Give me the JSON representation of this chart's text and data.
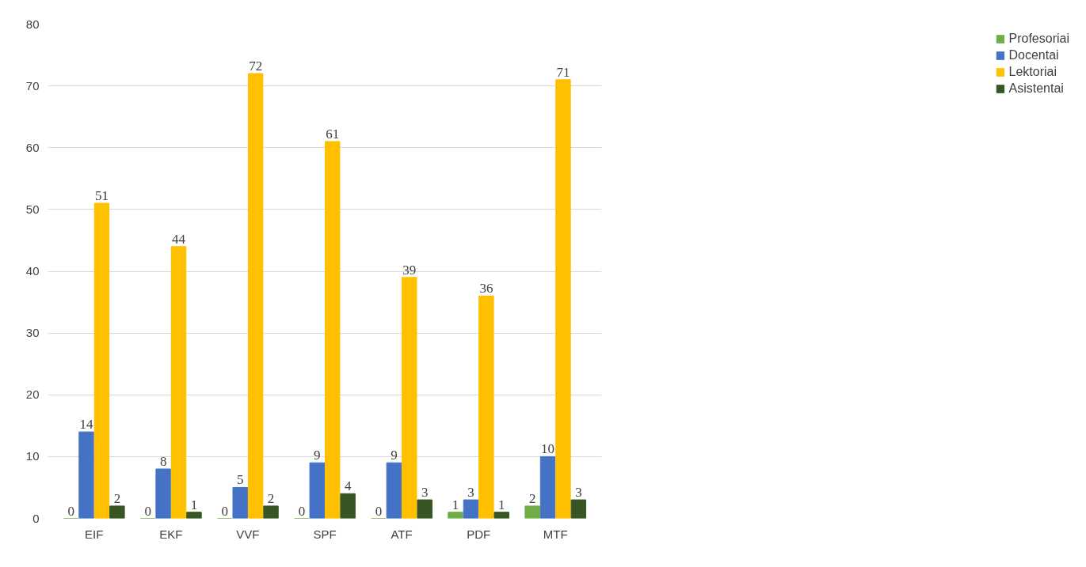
{
  "chart_data": {
    "type": "bar",
    "categories": [
      "EIF",
      "EKF",
      "VVF",
      "SPF",
      "ATF",
      "PDF",
      "MTF"
    ],
    "series": [
      {
        "name": "Profesoriai",
        "color": "#70ad47",
        "values": [
          0,
          0,
          0,
          0,
          0,
          1,
          2
        ]
      },
      {
        "name": "Docentai",
        "color": "#4472c4",
        "values": [
          14,
          8,
          5,
          9,
          9,
          3,
          10
        ]
      },
      {
        "name": "Lektoriai",
        "color": "#ffc000",
        "values": [
          51,
          44,
          72,
          61,
          39,
          36,
          71
        ]
      },
      {
        "name": "Asistentai",
        "color": "#375623",
        "values": [
          2,
          1,
          2,
          4,
          3,
          1,
          3
        ]
      }
    ],
    "ylim": [
      0,
      80
    ],
    "yticks": [
      0,
      10,
      20,
      30,
      40,
      50,
      60,
      70,
      80
    ],
    "grid": "y",
    "legend": "right",
    "data_labels": true
  }
}
